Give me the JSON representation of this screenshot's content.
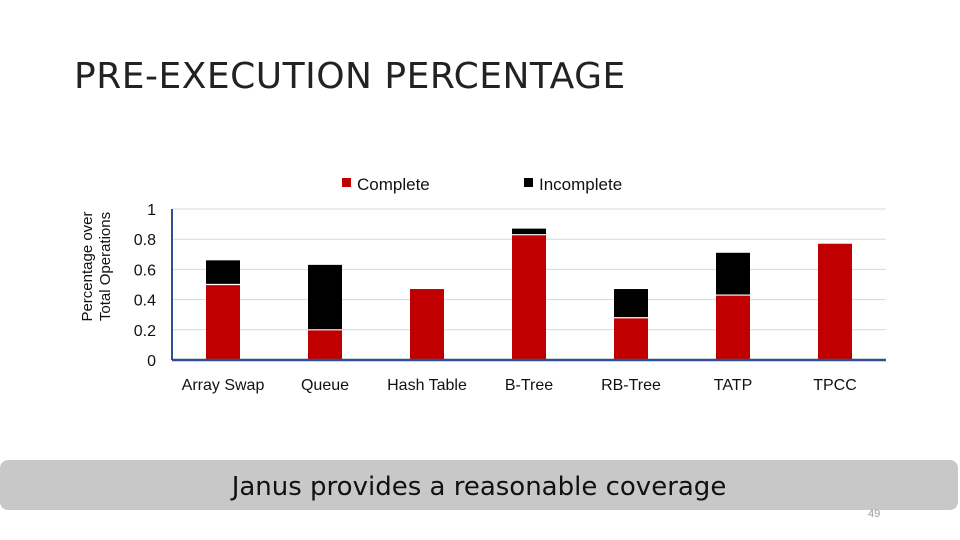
{
  "slide": {
    "title": "PRE-EXECUTION PERCENTAGE",
    "callout": "Janus provides a reasonable coverage",
    "page_number": "49"
  },
  "chart_data": {
    "type": "bar",
    "stacked": true,
    "ylabel": "Percentage over Total Operations",
    "ylim": [
      0,
      1
    ],
    "yticks": [
      "0",
      "0.2",
      "0.4",
      "0.6",
      "0.8",
      "1"
    ],
    "grid": true,
    "legend_position": "top",
    "categories": [
      "Array Swap",
      "Queue",
      "Hash Table",
      "B-Tree",
      "RB-Tree",
      "TATP",
      "TPCC"
    ],
    "series": [
      {
        "name": "Complete",
        "color": "#c00000",
        "values": [
          0.5,
          0.2,
          0.47,
          0.83,
          0.28,
          0.43,
          0.77
        ]
      },
      {
        "name": "Incomplete",
        "color": "#000000",
        "values": [
          0.16,
          0.43,
          0.0,
          0.04,
          0.19,
          0.28,
          0.0
        ]
      }
    ]
  }
}
